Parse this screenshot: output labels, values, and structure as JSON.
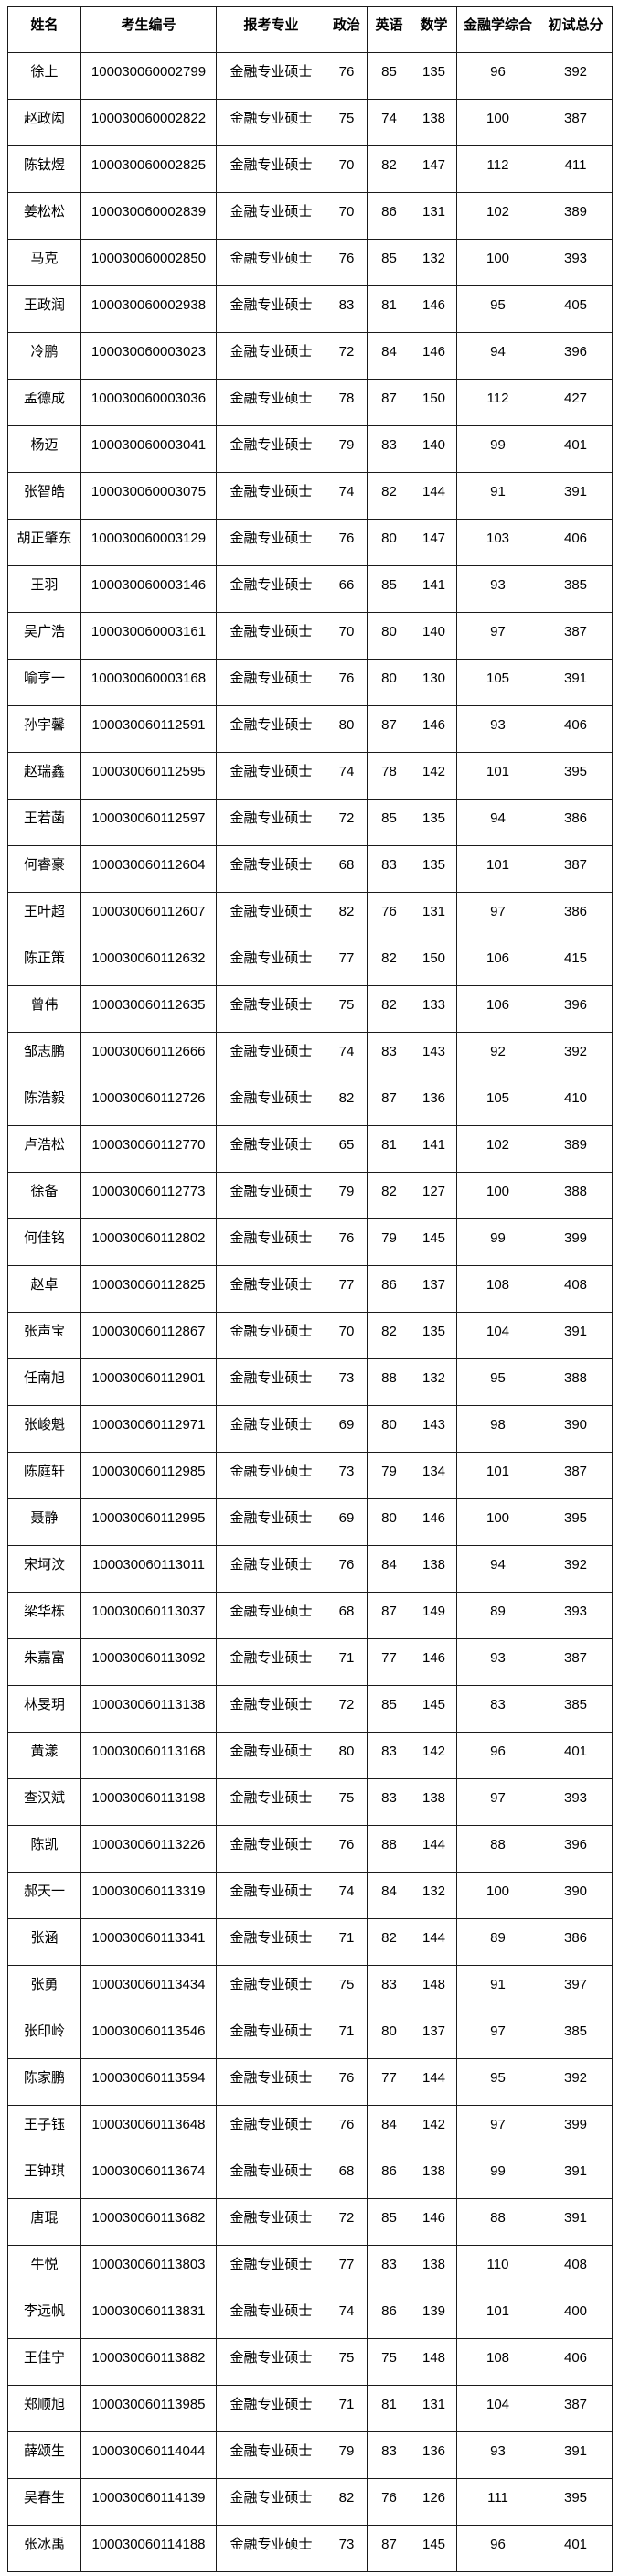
{
  "table": {
    "columns": [
      "姓名",
      "考生编号",
      "报考专业",
      "政治",
      "英语",
      "数学",
      "金融学综合",
      "初试总分"
    ],
    "rows": [
      [
        "徐上",
        "100030060002799",
        "金融专业硕士",
        76,
        85,
        135,
        96,
        392
      ],
      [
        "赵政闳",
        "100030060002822",
        "金融专业硕士",
        75,
        74,
        138,
        100,
        387
      ],
      [
        "陈钛煜",
        "100030060002825",
        "金融专业硕士",
        70,
        82,
        147,
        112,
        411
      ],
      [
        "姜松松",
        "100030060002839",
        "金融专业硕士",
        70,
        86,
        131,
        102,
        389
      ],
      [
        "马克",
        "100030060002850",
        "金融专业硕士",
        76,
        85,
        132,
        100,
        393
      ],
      [
        "王政润",
        "100030060002938",
        "金融专业硕士",
        83,
        81,
        146,
        95,
        405
      ],
      [
        "冷鹏",
        "100030060003023",
        "金融专业硕士",
        72,
        84,
        146,
        94,
        396
      ],
      [
        "孟德成",
        "100030060003036",
        "金融专业硕士",
        78,
        87,
        150,
        112,
        427
      ],
      [
        "杨迈",
        "100030060003041",
        "金融专业硕士",
        79,
        83,
        140,
        99,
        401
      ],
      [
        "张智皓",
        "100030060003075",
        "金融专业硕士",
        74,
        82,
        144,
        91,
        391
      ],
      [
        "胡正肇东",
        "100030060003129",
        "金融专业硕士",
        76,
        80,
        147,
        103,
        406
      ],
      [
        "王羽",
        "100030060003146",
        "金融专业硕士",
        66,
        85,
        141,
        93,
        385
      ],
      [
        "吴广浩",
        "100030060003161",
        "金融专业硕士",
        70,
        80,
        140,
        97,
        387
      ],
      [
        "喻亨一",
        "100030060003168",
        "金融专业硕士",
        76,
        80,
        130,
        105,
        391
      ],
      [
        "孙宇馨",
        "100030060112591",
        "金融专业硕士",
        80,
        87,
        146,
        93,
        406
      ],
      [
        "赵瑞鑫",
        "100030060112595",
        "金融专业硕士",
        74,
        78,
        142,
        101,
        395
      ],
      [
        "王若菡",
        "100030060112597",
        "金融专业硕士",
        72,
        85,
        135,
        94,
        386
      ],
      [
        "何睿豪",
        "100030060112604",
        "金融专业硕士",
        68,
        83,
        135,
        101,
        387
      ],
      [
        "王叶超",
        "100030060112607",
        "金融专业硕士",
        82,
        76,
        131,
        97,
        386
      ],
      [
        "陈正策",
        "100030060112632",
        "金融专业硕士",
        77,
        82,
        150,
        106,
        415
      ],
      [
        "曾伟",
        "100030060112635",
        "金融专业硕士",
        75,
        82,
        133,
        106,
        396
      ],
      [
        "邹志鹏",
        "100030060112666",
        "金融专业硕士",
        74,
        83,
        143,
        92,
        392
      ],
      [
        "陈浩毅",
        "100030060112726",
        "金融专业硕士",
        82,
        87,
        136,
        105,
        410
      ],
      [
        "卢浩松",
        "100030060112770",
        "金融专业硕士",
        65,
        81,
        141,
        102,
        389
      ],
      [
        "徐备",
        "100030060112773",
        "金融专业硕士",
        79,
        82,
        127,
        100,
        388
      ],
      [
        "何佳铭",
        "100030060112802",
        "金融专业硕士",
        76,
        79,
        145,
        99,
        399
      ],
      [
        "赵卓",
        "100030060112825",
        "金融专业硕士",
        77,
        86,
        137,
        108,
        408
      ],
      [
        "张声宝",
        "100030060112867",
        "金融专业硕士",
        70,
        82,
        135,
        104,
        391
      ],
      [
        "任南旭",
        "100030060112901",
        "金融专业硕士",
        73,
        88,
        132,
        95,
        388
      ],
      [
        "张峻魁",
        "100030060112971",
        "金融专业硕士",
        69,
        80,
        143,
        98,
        390
      ],
      [
        "陈庭轩",
        "100030060112985",
        "金融专业硕士",
        73,
        79,
        134,
        101,
        387
      ],
      [
        "聂静",
        "100030060112995",
        "金融专业硕士",
        69,
        80,
        146,
        100,
        395
      ],
      [
        "宋坷汶",
        "100030060113011",
        "金融专业硕士",
        76,
        84,
        138,
        94,
        392
      ],
      [
        "梁华栋",
        "100030060113037",
        "金融专业硕士",
        68,
        87,
        149,
        89,
        393
      ],
      [
        "朱嘉富",
        "100030060113092",
        "金融专业硕士",
        71,
        77,
        146,
        93,
        387
      ],
      [
        "林旻玥",
        "100030060113138",
        "金融专业硕士",
        72,
        85,
        145,
        83,
        385
      ],
      [
        "黄漾",
        "100030060113168",
        "金融专业硕士",
        80,
        83,
        142,
        96,
        401
      ],
      [
        "查汉斌",
        "100030060113198",
        "金融专业硕士",
        75,
        83,
        138,
        97,
        393
      ],
      [
        "陈凯",
        "100030060113226",
        "金融专业硕士",
        76,
        88,
        144,
        88,
        396
      ],
      [
        "郝天一",
        "100030060113319",
        "金融专业硕士",
        74,
        84,
        132,
        100,
        390
      ],
      [
        "张涵",
        "100030060113341",
        "金融专业硕士",
        71,
        82,
        144,
        89,
        386
      ],
      [
        "张勇",
        "100030060113434",
        "金融专业硕士",
        75,
        83,
        148,
        91,
        397
      ],
      [
        "张印岭",
        "100030060113546",
        "金融专业硕士",
        71,
        80,
        137,
        97,
        385
      ],
      [
        "陈家鹏",
        "100030060113594",
        "金融专业硕士",
        76,
        77,
        144,
        95,
        392
      ],
      [
        "王子钰",
        "100030060113648",
        "金融专业硕士",
        76,
        84,
        142,
        97,
        399
      ],
      [
        "王钟琪",
        "100030060113674",
        "金融专业硕士",
        68,
        86,
        138,
        99,
        391
      ],
      [
        "唐琨",
        "100030060113682",
        "金融专业硕士",
        72,
        85,
        146,
        88,
        391
      ],
      [
        "牛悦",
        "100030060113803",
        "金融专业硕士",
        77,
        83,
        138,
        110,
        408
      ],
      [
        "李远帆",
        "100030060113831",
        "金融专业硕士",
        74,
        86,
        139,
        101,
        400
      ],
      [
        "王佳宁",
        "100030060113882",
        "金融专业硕士",
        75,
        75,
        148,
        108,
        406
      ],
      [
        "郑顺旭",
        "100030060113985",
        "金融专业硕士",
        71,
        81,
        131,
        104,
        387
      ],
      [
        "薛颂生",
        "100030060114044",
        "金融专业硕士",
        79,
        83,
        136,
        93,
        391
      ],
      [
        "吴春生",
        "100030060114139",
        "金融专业硕士",
        82,
        76,
        126,
        111,
        395
      ],
      [
        "张冰禹",
        "100030060114188",
        "金融专业硕士",
        73,
        87,
        145,
        96,
        401
      ]
    ]
  }
}
